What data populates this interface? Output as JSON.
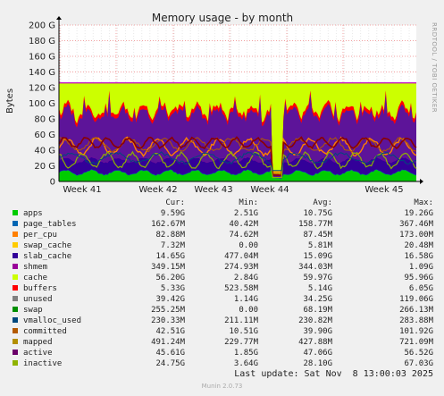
{
  "chart_data": {
    "type": "area",
    "title": "Memory usage - by month",
    "ylabel": "Bytes",
    "side_label": "RRDTOOL / TOBI OETIKER",
    "ylim": [
      0,
      200
    ],
    "y_unit": "G",
    "yticks": [
      "0",
      "20 G",
      "40 G",
      "60 G",
      "80 G",
      "100 G",
      "120 G",
      "140 G",
      "160 G",
      "180 G",
      "200 G"
    ],
    "xticks": [
      "Week 41",
      "Week 42",
      "Week 43",
      "Week 44",
      "Week 45"
    ],
    "headers": {
      "cur": "Cur:",
      "min": "Min:",
      "avg": "Avg:",
      "max": "Max:"
    },
    "series": [
      {
        "name": "apps",
        "color": "#00cc00",
        "cur": "9.59G",
        "min": "2.51G",
        "avg": "10.75G",
        "max": "19.26G"
      },
      {
        "name": "page_tables",
        "color": "#0066b3",
        "cur": "162.67M",
        "min": "40.42M",
        "avg": "158.77M",
        "max": "367.46M"
      },
      {
        "name": "per_cpu",
        "color": "#ff8000",
        "cur": "82.88M",
        "min": "74.62M",
        "avg": "87.45M",
        "max": "173.00M"
      },
      {
        "name": "swap_cache",
        "color": "#ffcc00",
        "cur": "7.32M",
        "min": "0.00",
        "avg": "5.81M",
        "max": "20.48M"
      },
      {
        "name": "slab_cache",
        "color": "#330099",
        "cur": "14.65G",
        "min": "477.04M",
        "avg": "15.09G",
        "max": "16.58G"
      },
      {
        "name": "shmem",
        "color": "#990099",
        "cur": "349.15M",
        "min": "274.93M",
        "avg": "344.03M",
        "max": "1.09G"
      },
      {
        "name": "cache",
        "color": "#ccff00",
        "cur": "56.20G",
        "min": "2.84G",
        "avg": "59.97G",
        "max": "95.96G"
      },
      {
        "name": "buffers",
        "color": "#ff0000",
        "cur": "5.33G",
        "min": "523.58M",
        "avg": "5.14G",
        "max": "6.05G"
      },
      {
        "name": "unused",
        "color": "#808080",
        "cur": "39.42G",
        "min": "1.14G",
        "avg": "34.25G",
        "max": "119.06G"
      },
      {
        "name": "swap",
        "color": "#008f00",
        "cur": "255.25M",
        "min": "0.00",
        "avg": "68.19M",
        "max": "266.13M"
      },
      {
        "name": "vmalloc_used",
        "color": "#00487d",
        "cur": "230.33M",
        "min": "211.11M",
        "avg": "230.82M",
        "max": "283.88M"
      },
      {
        "name": "committed",
        "color": "#b35a00",
        "cur": "42.51G",
        "min": "10.51G",
        "avg": "39.90G",
        "max": "101.92G"
      },
      {
        "name": "mapped",
        "color": "#b38f00",
        "cur": "491.24M",
        "min": "229.77M",
        "avg": "427.88M",
        "max": "721.09M"
      },
      {
        "name": "active",
        "color": "#6b006b",
        "cur": "45.61G",
        "min": "1.85G",
        "avg": "47.06G",
        "max": "56.52G"
      },
      {
        "name": "inactive",
        "color": "#8fb300",
        "cur": "24.75G",
        "min": "3.64G",
        "avg": "28.10G",
        "max": "67.03G"
      }
    ]
  },
  "footer": {
    "last_update": "Last update: Sat Nov  8 13:00:03 2025",
    "munin": "Munin 2.0.73"
  }
}
